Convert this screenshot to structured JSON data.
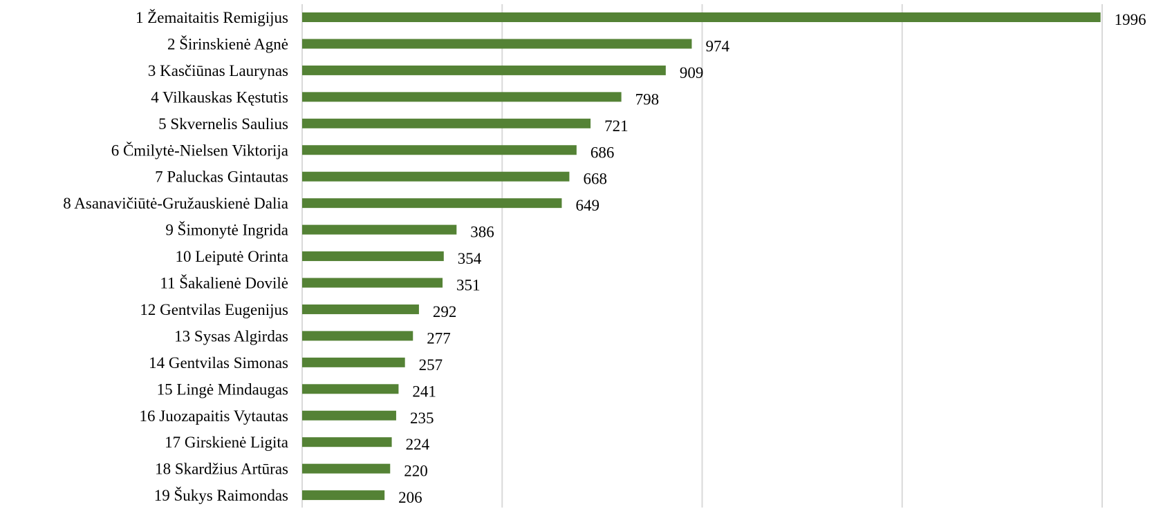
{
  "chart_data": {
    "type": "bar",
    "orientation": "horizontal",
    "title": "",
    "xlabel": "",
    "ylabel": "",
    "categories": [
      "1 Žemaitaitis Remigijus",
      "2 Širinskienė Agnė",
      "3 Kasčiūnas Laurynas",
      "4 Vilkauskas Kęstutis",
      "5 Skvernelis Saulius",
      "6 Čmilytė-Nielsen Viktorija",
      "7 Paluckas Gintautas",
      "8 Asanavičiūtė-Gružauskienė Dalia",
      "9 Šimonytė Ingrida",
      "10 Leiputė Orinta",
      "11 Šakalienė Dovilė",
      "12 Gentvilas Eugenijus",
      "13 Sysas Algirdas",
      "14 Gentvilas Simonas",
      "15 Lingė Mindaugas",
      "16 Juozapaitis Vytautas",
      "17 Girskienė Ligita",
      "18 Skardžius Artūras",
      "19 Šukys Raimondas"
    ],
    "values": [
      1996,
      974,
      909,
      798,
      721,
      686,
      668,
      649,
      386,
      354,
      351,
      292,
      277,
      257,
      241,
      235,
      224,
      220,
      206
    ],
    "xlim": [
      0,
      2000
    ],
    "x_gridlines": [
      0,
      500,
      1000,
      1500,
      2000
    ],
    "grid": "vertical",
    "tick_labels_on_value_axis": false,
    "data_labels": true,
    "legend": "none",
    "bar_color": "#548235",
    "grid_color": "#d9d9d9",
    "text_color": "#000000"
  }
}
